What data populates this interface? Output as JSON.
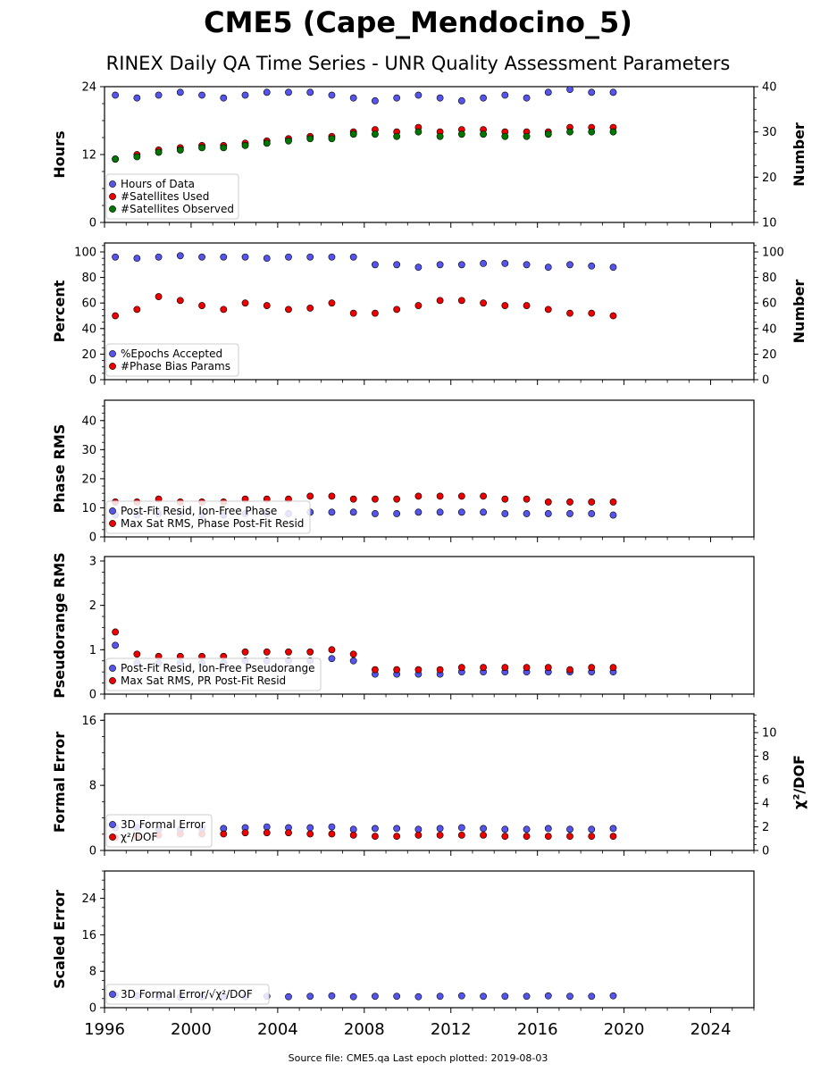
{
  "title": "CME5 (Cape_Mendocino_5)",
  "subtitle": "RINEX Daily QA Time Series - UNR Quality Assessment Parameters",
  "footer": "Source file: CME5.qa Last epoch plotted: 2019-08-03",
  "colors": {
    "blue": "#5555ee",
    "red": "#ee0000",
    "green": "#007700"
  },
  "chart_data": [
    {
      "type": "scatter",
      "id": "hours",
      "ylabel": "Hours",
      "ylim": [
        0,
        24
      ],
      "yticks": [
        0,
        12,
        24
      ],
      "ylabel_right": "Number",
      "ylim_right": [
        10,
        40
      ],
      "yticks_right": [
        10,
        20,
        30,
        40
      ],
      "xlim": [
        1996,
        2026
      ],
      "legend_position": "lower-left",
      "series": [
        {
          "name": "Hours of Data",
          "color": "blue",
          "axis": "left",
          "x": [
            1996.5,
            1997.5,
            1998.5,
            1999.5,
            2000.5,
            2001.5,
            2002.5,
            2003.5,
            2004.5,
            2005.5,
            2006.5,
            2007.5,
            2008.5,
            2009.5,
            2010.5,
            2011.5,
            2012.5,
            2013.5,
            2014.5,
            2015.5,
            2016.5,
            2017.5,
            2018.5,
            2019.5
          ],
          "y": [
            22.5,
            22,
            22.5,
            23,
            22.5,
            22,
            22.5,
            23,
            23,
            23,
            22.5,
            22,
            21.5,
            22,
            22.5,
            22,
            21.5,
            22,
            22.5,
            22,
            23,
            23.5,
            23,
            23
          ]
        },
        {
          "name": "#Satellites Used",
          "color": "red",
          "axis": "right",
          "x": [
            1996.5,
            1997.5,
            1998.5,
            1999.5,
            2000.5,
            2001.5,
            2002.5,
            2003.5,
            2004.5,
            2005.5,
            2006.5,
            2007.5,
            2008.5,
            2009.5,
            2010.5,
            2011.5,
            2012.5,
            2013.5,
            2014.5,
            2015.5,
            2016.5,
            2017.5,
            2018.5,
            2019.5
          ],
          "y": [
            24,
            25,
            26,
            26.5,
            27,
            27,
            27.5,
            28,
            28.5,
            29,
            29,
            30,
            30.5,
            30,
            31,
            30,
            30.5,
            30.5,
            30,
            30,
            30,
            31,
            31,
            31
          ]
        },
        {
          "name": "#Satellites Observed",
          "color": "green",
          "axis": "right",
          "x": [
            1996.5,
            1997.5,
            1998.5,
            1999.5,
            2000.5,
            2001.5,
            2002.5,
            2003.5,
            2004.5,
            2005.5,
            2006.5,
            2007.5,
            2008.5,
            2009.5,
            2010.5,
            2011.5,
            2012.5,
            2013.5,
            2014.5,
            2015.5,
            2016.5,
            2017.5,
            2018.5,
            2019.5
          ],
          "y": [
            24,
            24.5,
            25.5,
            26,
            26.5,
            26.5,
            27,
            27.5,
            28,
            28.5,
            28.5,
            29.5,
            29.5,
            29,
            30,
            29,
            29.5,
            29.5,
            29,
            29,
            29.5,
            30,
            30,
            30
          ]
        }
      ]
    },
    {
      "type": "scatter",
      "id": "percent",
      "ylabel": "Percent",
      "ylim": [
        0,
        107
      ],
      "yticks": [
        0,
        20,
        40,
        60,
        80,
        100
      ],
      "ylabel_right": "Number",
      "ylim_right": [
        0,
        107
      ],
      "yticks_right": [
        0,
        20,
        40,
        60,
        80,
        100
      ],
      "xlim": [
        1996,
        2026
      ],
      "legend_position": "lower-left",
      "series": [
        {
          "name": "%Epochs Accepted",
          "color": "blue",
          "axis": "left",
          "x": [
            1996.5,
            1997.5,
            1998.5,
            1999.5,
            2000.5,
            2001.5,
            2002.5,
            2003.5,
            2004.5,
            2005.5,
            2006.5,
            2007.5,
            2008.5,
            2009.5,
            2010.5,
            2011.5,
            2012.5,
            2013.5,
            2014.5,
            2015.5,
            2016.5,
            2017.5,
            2018.5,
            2019.5
          ],
          "y": [
            96,
            95,
            96,
            97,
            96,
            96,
            96,
            95,
            96,
            96,
            96,
            96,
            90,
            90,
            88,
            90,
            90,
            91,
            91,
            90,
            88,
            90,
            89,
            88
          ]
        },
        {
          "name": "#Phase Bias Params",
          "color": "red",
          "axis": "right",
          "x": [
            1996.5,
            1997.5,
            1998.5,
            1999.5,
            2000.5,
            2001.5,
            2002.5,
            2003.5,
            2004.5,
            2005.5,
            2006.5,
            2007.5,
            2008.5,
            2009.5,
            2010.5,
            2011.5,
            2012.5,
            2013.5,
            2014.5,
            2015.5,
            2016.5,
            2017.5,
            2018.5,
            2019.5
          ],
          "y": [
            50,
            55,
            65,
            62,
            58,
            55,
            60,
            58,
            55,
            56,
            60,
            52,
            52,
            55,
            58,
            62,
            62,
            60,
            58,
            58,
            55,
            52,
            52,
            50
          ]
        }
      ]
    },
    {
      "type": "scatter",
      "id": "phase_rms",
      "ylabel": "Phase RMS",
      "ylim": [
        0,
        47
      ],
      "yticks": [
        0,
        10,
        20,
        30,
        40
      ],
      "xlim": [
        1996,
        2026
      ],
      "legend_position": "lower-left",
      "series": [
        {
          "name": "Post-Fit Resid, Ion-Free Phase",
          "color": "blue",
          "axis": "left",
          "x": [
            1996.5,
            1997.5,
            1998.5,
            1999.5,
            2000.5,
            2001.5,
            2002.5,
            2003.5,
            2004.5,
            2005.5,
            2006.5,
            2007.5,
            2008.5,
            2009.5,
            2010.5,
            2011.5,
            2012.5,
            2013.5,
            2014.5,
            2015.5,
            2016.5,
            2017.5,
            2018.5,
            2019.5
          ],
          "y": [
            7.5,
            7.5,
            8,
            8,
            7.5,
            7.5,
            8,
            8,
            8,
            8.5,
            8.5,
            8.5,
            8,
            8,
            8.5,
            8.5,
            8.5,
            8.5,
            8,
            8,
            8,
            8,
            8,
            7.5
          ]
        },
        {
          "name": "Max Sat RMS, Phase Post-Fit Resid",
          "color": "red",
          "axis": "left",
          "x": [
            1996.5,
            1997.5,
            1998.5,
            1999.5,
            2000.5,
            2001.5,
            2002.5,
            2003.5,
            2004.5,
            2005.5,
            2006.5,
            2007.5,
            2008.5,
            2009.5,
            2010.5,
            2011.5,
            2012.5,
            2013.5,
            2014.5,
            2015.5,
            2016.5,
            2017.5,
            2018.5,
            2019.5
          ],
          "y": [
            12,
            12,
            13,
            12,
            12,
            12,
            13,
            13,
            13,
            14,
            14,
            13,
            13,
            13,
            14,
            14,
            14,
            14,
            13,
            13,
            12,
            12,
            12,
            12
          ]
        }
      ]
    },
    {
      "type": "scatter",
      "id": "pseudorange_rms",
      "ylabel": "Pseudorange RMS",
      "ylim": [
        0,
        3.1
      ],
      "yticks": [
        0,
        1,
        2,
        3
      ],
      "xlim": [
        1996,
        2026
      ],
      "legend_position": "lower-left",
      "series": [
        {
          "name": "Post-Fit Resid, Ion-Free Pseudorange",
          "color": "blue",
          "axis": "left",
          "x": [
            1996.5,
            1997.5,
            1998.5,
            1999.5,
            2000.5,
            2001.5,
            2002.5,
            2003.5,
            2004.5,
            2005.5,
            2006.5,
            2007.5,
            2008.5,
            2009.5,
            2010.5,
            2011.5,
            2012.5,
            2013.5,
            2014.5,
            2015.5,
            2016.5,
            2017.5,
            2018.5,
            2019.5
          ],
          "y": [
            1.1,
            0.7,
            0.7,
            0.7,
            0.7,
            0.7,
            0.75,
            0.75,
            0.75,
            0.75,
            0.8,
            0.75,
            0.45,
            0.45,
            0.45,
            0.45,
            0.5,
            0.5,
            0.5,
            0.5,
            0.5,
            0.5,
            0.5,
            0.5
          ]
        },
        {
          "name": "Max Sat RMS, PR Post-Fit Resid",
          "color": "red",
          "axis": "left",
          "x": [
            1996.5,
            1997.5,
            1998.5,
            1999.5,
            2000.5,
            2001.5,
            2002.5,
            2003.5,
            2004.5,
            2005.5,
            2006.5,
            2007.5,
            2008.5,
            2009.5,
            2010.5,
            2011.5,
            2012.5,
            2013.5,
            2014.5,
            2015.5,
            2016.5,
            2017.5,
            2018.5,
            2019.5
          ],
          "y": [
            1.4,
            0.9,
            0.85,
            0.85,
            0.85,
            0.85,
            0.95,
            0.95,
            0.95,
            0.95,
            1.0,
            0.9,
            0.55,
            0.55,
            0.55,
            0.55,
            0.6,
            0.6,
            0.6,
            0.6,
            0.6,
            0.55,
            0.6,
            0.6
          ]
        }
      ]
    },
    {
      "type": "scatter",
      "id": "formal_error",
      "ylabel": "Formal Error",
      "ylim": [
        0,
        16.8
      ],
      "yticks": [
        0,
        8,
        16
      ],
      "ylabel_right": "χ²/DOF",
      "ylim_right": [
        0,
        11.6
      ],
      "yticks_right": [
        0,
        2,
        4,
        6,
        8,
        10
      ],
      "xlim": [
        1996,
        2026
      ],
      "legend_position": "lower-left",
      "series": [
        {
          "name": "3D Formal Error",
          "color": "blue",
          "axis": "left",
          "x": [
            1996.5,
            1997.5,
            1998.5,
            1999.5,
            2000.5,
            2001.5,
            2002.5,
            2003.5,
            2004.5,
            2005.5,
            2006.5,
            2007.5,
            2008.5,
            2009.5,
            2010.5,
            2011.5,
            2012.5,
            2013.5,
            2014.5,
            2015.5,
            2016.5,
            2017.5,
            2018.5,
            2019.5
          ],
          "y": [
            2.8,
            2.8,
            2.6,
            2.6,
            2.7,
            2.7,
            2.8,
            2.9,
            2.8,
            2.8,
            2.9,
            2.6,
            2.7,
            2.7,
            2.6,
            2.7,
            2.8,
            2.7,
            2.6,
            2.6,
            2.7,
            2.6,
            2.6,
            2.7
          ]
        },
        {
          "name": "χ²/DOF",
          "color": "red",
          "axis": "right",
          "x": [
            1996.5,
            1997.5,
            1998.5,
            1999.5,
            2000.5,
            2001.5,
            2002.5,
            2003.5,
            2004.5,
            2005.5,
            2006.5,
            2007.5,
            2008.5,
            2009.5,
            2010.5,
            2011.5,
            2012.5,
            2013.5,
            2014.5,
            2015.5,
            2016.5,
            2017.5,
            2018.5,
            2019.5
          ],
          "y": [
            1.1,
            1.2,
            1.3,
            1.4,
            1.4,
            1.4,
            1.5,
            1.5,
            1.5,
            1.4,
            1.4,
            1.3,
            1.2,
            1.2,
            1.3,
            1.3,
            1.3,
            1.3,
            1.2,
            1.2,
            1.2,
            1.2,
            1.2,
            1.2
          ]
        }
      ]
    },
    {
      "type": "scatter",
      "id": "scaled_error",
      "ylabel": "Scaled Error",
      "ylim": [
        0,
        30
      ],
      "yticks": [
        0,
        8,
        16,
        24
      ],
      "xlim": [
        1996,
        2026
      ],
      "xticks": [
        1996,
        2000,
        2004,
        2008,
        2012,
        2016,
        2020,
        2024
      ],
      "legend_position": "lower-left",
      "series": [
        {
          "name": "3D Formal Error/√χ²/DOF",
          "color": "blue",
          "axis": "left",
          "x": [
            1996.5,
            1997.5,
            1998.5,
            1999.5,
            2000.5,
            2001.5,
            2002.5,
            2003.5,
            2004.5,
            2005.5,
            2006.5,
            2007.5,
            2008.5,
            2009.5,
            2010.5,
            2011.5,
            2012.5,
            2013.5,
            2014.5,
            2015.5,
            2016.5,
            2017.5,
            2018.5,
            2019.5
          ],
          "y": [
            2.8,
            2.6,
            2.4,
            2.3,
            2.4,
            2.4,
            2.4,
            2.5,
            2.4,
            2.5,
            2.6,
            2.4,
            2.5,
            2.5,
            2.4,
            2.5,
            2.6,
            2.5,
            2.5,
            2.5,
            2.6,
            2.5,
            2.5,
            2.6
          ]
        }
      ]
    }
  ]
}
